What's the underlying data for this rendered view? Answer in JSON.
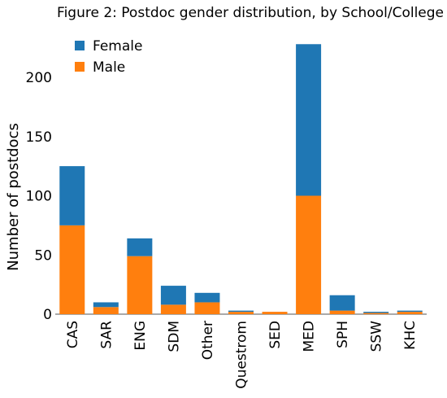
{
  "chart_data": {
    "type": "bar",
    "stacked": true,
    "title": "Figure 2: Postdoc gender distribution, by School/College",
    "xlabel": "",
    "ylabel": "Number of postdocs",
    "categories": [
      "CAS",
      "SAR",
      "ENG",
      "SDM",
      "Other",
      "Questrom",
      "SED",
      "MED",
      "SPH",
      "SSW",
      "KHC"
    ],
    "series": [
      {
        "name": "Male",
        "color": "#ff7f0e",
        "values": [
          75,
          6,
          49,
          8,
          10,
          2,
          2,
          100,
          3,
          1,
          2
        ]
      },
      {
        "name": "Female",
        "color": "#1f77b4",
        "values": [
          50,
          4,
          15,
          16,
          8,
          1,
          0,
          128,
          13,
          1,
          1
        ]
      }
    ],
    "ylim": [
      0,
      240
    ],
    "yticks": [
      0,
      50,
      100,
      150,
      200
    ],
    "legend": {
      "placement": "top-left",
      "order": [
        "Female",
        "Male"
      ]
    },
    "grid": false
  }
}
